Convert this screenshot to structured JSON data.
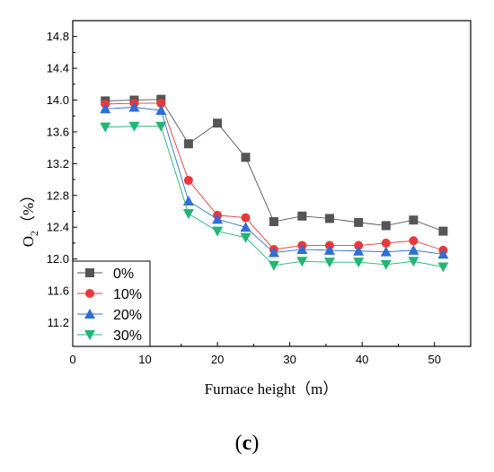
{
  "panel": {
    "open": "(",
    "letter": "c",
    "close": ")"
  },
  "chart_data": {
    "type": "line",
    "xlabel": "Furnace height（m）",
    "ylabel": {
      "base": "O",
      "sub": "2",
      "unit": "（%）"
    },
    "xlim": [
      0,
      55
    ],
    "ylim": [
      10.9,
      15.0
    ],
    "xticks": [
      0,
      10,
      20,
      30,
      40,
      50
    ],
    "yticks": [
      11.2,
      11.6,
      12.0,
      12.4,
      12.8,
      13.2,
      13.6,
      14.0,
      14.4,
      14.8
    ],
    "grid": false,
    "legend_position": "bottom-left",
    "x": [
      4.5,
      8.5,
      12.2,
      16.0,
      20.0,
      23.9,
      27.8,
      31.7,
      35.5,
      39.5,
      43.3,
      47.1,
      51.2
    ],
    "series": [
      {
        "name": "0%",
        "color": "#555555",
        "marker": "square",
        "values": [
          13.99,
          14.0,
          14.01,
          13.45,
          13.71,
          13.28,
          12.47,
          12.54,
          12.51,
          12.46,
          12.42,
          12.49,
          12.35
        ]
      },
      {
        "name": "10%",
        "color": "#e8393a",
        "marker": "circle",
        "values": [
          13.95,
          13.96,
          13.96,
          12.99,
          12.55,
          12.52,
          12.12,
          12.17,
          12.17,
          12.17,
          12.2,
          12.23,
          12.11
        ]
      },
      {
        "name": "20%",
        "color": "#2c6fd6",
        "marker": "triangle-up",
        "values": [
          13.89,
          13.91,
          13.87,
          12.73,
          12.5,
          12.4,
          12.08,
          12.12,
          12.11,
          12.1,
          12.09,
          12.11,
          12.06
        ]
      },
      {
        "name": "30%",
        "color": "#22b573",
        "marker": "triangle-down",
        "values": [
          13.66,
          13.67,
          13.67,
          12.57,
          12.35,
          12.27,
          11.92,
          11.97,
          11.96,
          11.96,
          11.93,
          11.97,
          11.9
        ]
      }
    ]
  }
}
